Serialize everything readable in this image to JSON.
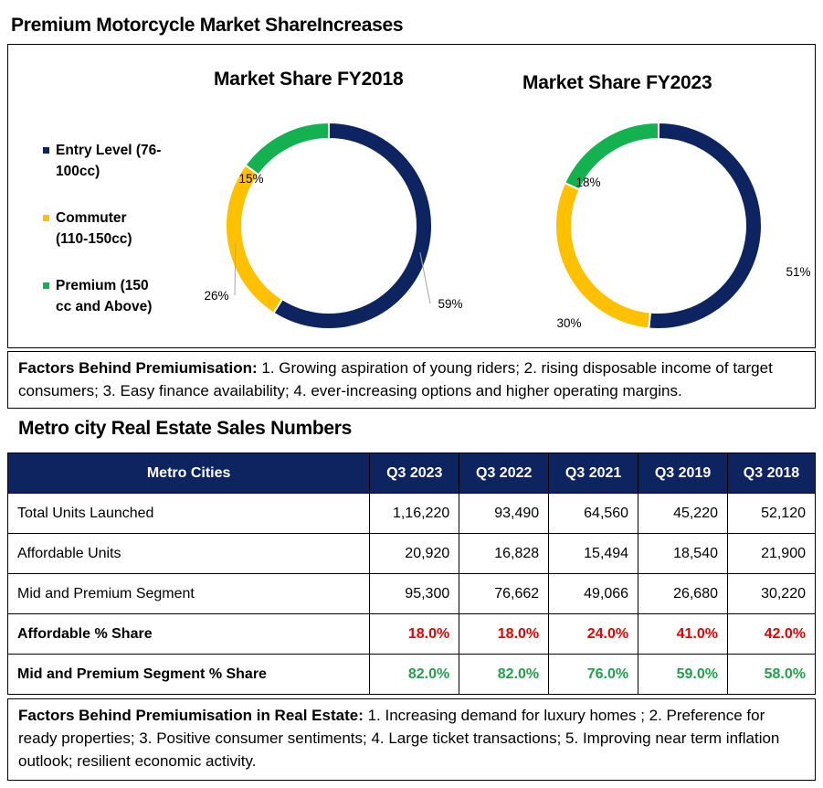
{
  "header": {
    "title": "Premium Motorcycle Market ShareIncreases"
  },
  "legend": [
    {
      "line1": "Entry Level (76-",
      "line2": "100cc)",
      "color": "#0d2461"
    },
    {
      "line1": "Commuter",
      "line2": "(110-150cc)",
      "color": "#ffc000"
    },
    {
      "line1": "Premium (150",
      "line2": "cc and Above)",
      "color": "#14b150"
    }
  ],
  "chart_data": [
    {
      "type": "pie",
      "title": "Market Share FY2018",
      "categories": [
        "Entry Level (76-100cc)",
        "Commuter (110-150cc)",
        "Premium (150 cc and Above)"
      ],
      "values": [
        59,
        26,
        15
      ],
      "labels": [
        "59%",
        "26%",
        "15%"
      ],
      "colors": [
        "#0d2461",
        "#ffc000",
        "#14b150"
      ],
      "legend": "left"
    },
    {
      "type": "pie",
      "title": "Market Share FY2023",
      "categories": [
        "Entry Level (76-100cc)",
        "Commuter (110-150cc)",
        "Premium (150 cc and Above)"
      ],
      "values": [
        51,
        30,
        18
      ],
      "labels": [
        "51%",
        "30%",
        "18%"
      ],
      "colors": [
        "#0d2461",
        "#ffc000",
        "#14b150"
      ],
      "legend": "left"
    }
  ],
  "factors_moto": {
    "label": "Factors Behind Premiumisation:",
    "text": "  1. Growing aspiration of young riders; 2. rising disposable income of target consumers; 3.  Easy finance availability; 4. ever-increasing options and higher operating margins."
  },
  "real_estate": {
    "title": "Metro city Real Estate Sales Numbers",
    "columns": [
      "Metro Cities",
      "Q3 2023",
      "Q3 2022",
      "Q3 2021",
      "Q3 2019",
      "Q3 2018"
    ],
    "rows": [
      {
        "label": "Total Units Launched",
        "values": [
          "1,16,220",
          "93,490",
          "64,560",
          "45,220",
          "52,120"
        ],
        "style": "normal"
      },
      {
        "label": "Affordable Units",
        "values": [
          "20,920",
          "16,828",
          "15,494",
          "18,540",
          "21,900"
        ],
        "style": "normal"
      },
      {
        "label": "Mid and Premium Segment",
        "values": [
          "95,300",
          "76,662",
          "49,066",
          "26,680",
          "30,220"
        ],
        "style": "normal"
      },
      {
        "label": "Affordable % Share",
        "values": [
          "18.0%",
          "18.0%",
          "24.0%",
          "41.0%",
          "42.0%"
        ],
        "style": "red"
      },
      {
        "label": "Mid and Premium Segment % Share",
        "values": [
          "82.0%",
          "82.0%",
          "76.0%",
          "59.0%",
          "58.0%"
        ],
        "style": "green"
      }
    ]
  },
  "factors_re": {
    "label": "Factors Behind Premiumisation in Real Estate:",
    "text": "   1. Increasing demand for luxury homes  ; 2. Preference for ready properties; 3.  Positive consumer sentiments; 4.  Large ticket transactions; 5. Improving near term inflation outlook; resilient economic activity."
  }
}
